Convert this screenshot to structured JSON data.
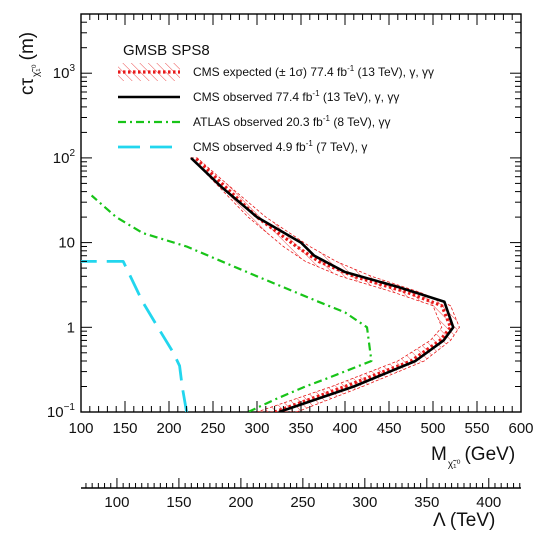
{
  "chart_data": {
    "type": "line",
    "title": "GMSB SPS8",
    "xlabel": "M (GeV)",
    "xlabel_main": "M",
    "xlabel_sub": "χ̃₁⁰",
    "xlabel_unit": "(GeV)",
    "ylabel": "cτ (m)",
    "ylabel_main": "cτ",
    "ylabel_sub": "χ̃₁⁰",
    "ylabel_unit": "(m)",
    "x2label": "Λ (TeV)",
    "xlim": [
      100,
      600
    ],
    "ylim": [
      0.1,
      5000
    ],
    "yscale": "log",
    "x2lim": [
      71,
      426
    ],
    "x_ticks": [
      100,
      150,
      200,
      250,
      300,
      350,
      400,
      450,
      500,
      550,
      600
    ],
    "x2_ticks": [
      100,
      150,
      200,
      250,
      300,
      350,
      400
    ],
    "y_ticks": [
      {
        "value": 0.1,
        "base": "10",
        "exp": "−1"
      },
      {
        "value": 1,
        "label": "1"
      },
      {
        "value": 10,
        "label": "10"
      },
      {
        "value": 100,
        "base": "10",
        "exp": "2"
      },
      {
        "value": 1000,
        "base": "10",
        "exp": "3"
      }
    ],
    "legend_position": "top-left",
    "series": [
      {
        "name": "CMS expected (± 1σ) 77.4 fb⁻¹ (13 TeV), γ, γγ",
        "legend": {
          "main": "CMS expected (± 1σ) 77.4 fb",
          "sup": "-1",
          "rest": " (13 TeV), γ, γγ"
        },
        "style": "dotted-band",
        "color": "#e8191a",
        "x": [
          320,
          400,
          475,
          508,
          520,
          510,
          470,
          410,
          370,
          345,
          300,
          260,
          230
        ],
        "y": [
          0.1,
          0.2,
          0.4,
          0.7,
          1.0,
          1.8,
          2.6,
          4.0,
          6.0,
          9.0,
          20,
          50,
          100
        ],
        "band_upper_x": [
          345,
          420,
          490,
          520,
          530,
          520,
          485,
          430,
          390,
          360,
          310,
          265,
          232
        ],
        "band_lower_x": [
          300,
          385,
          460,
          497,
          510,
          500,
          455,
          395,
          355,
          330,
          290,
          253,
          225
        ]
      },
      {
        "name": "CMS observed 77.4 fb⁻¹ (13 TeV), γ, γγ",
        "legend": {
          "main": "CMS observed 77.4 fb",
          "sup": "-1",
          "rest": " (13 TeV), γ, γγ"
        },
        "style": "solid",
        "color": "#000000",
        "x": [
          325,
          410,
          480,
          512,
          523,
          513,
          460,
          400,
          365,
          350,
          300,
          260,
          225
        ],
        "y": [
          0.1,
          0.2,
          0.4,
          0.7,
          1.0,
          2.0,
          3.0,
          4.5,
          7.0,
          10,
          20,
          45,
          100
        ]
      },
      {
        "name": "ATLAS observed 20.3 fb⁻¹ (8 TeV), γγ",
        "legend": {
          "main": "ATLAS observed 20.3 fb",
          "sup": "-1",
          "rest": " (8 TeV), γγ"
        },
        "style": "dash-dot",
        "color": "#18c418",
        "x": [
          290,
          320,
          355,
          380,
          430,
          425,
          400,
          370,
          300,
          220,
          170,
          140,
          112
        ],
        "y": [
          0.1,
          0.14,
          0.2,
          0.25,
          0.4,
          1.0,
          1.5,
          2.0,
          4.0,
          9.0,
          13,
          20,
          36
        ]
      },
      {
        "name": "CMS observed 4.9 fb⁻¹ (7 TeV), γ",
        "legend": {
          "main": "CMS observed 4.9 fb",
          "sup": "-1",
          "rest": " (7 TeV), γ"
        },
        "style": "long-dash",
        "color": "#22d6ee",
        "x": [
          220,
          215,
          212,
          205,
          190,
          170,
          148,
          100
        ],
        "y": [
          0.1,
          0.2,
          0.35,
          0.5,
          0.9,
          2.0,
          6.0,
          6.0
        ]
      }
    ]
  }
}
